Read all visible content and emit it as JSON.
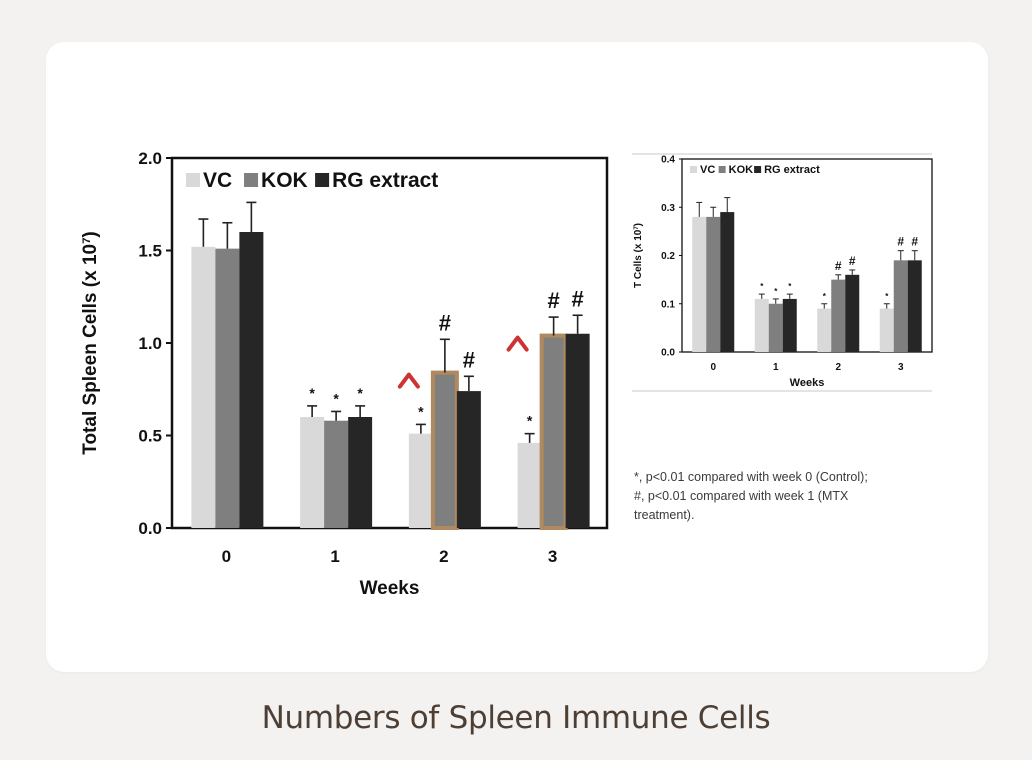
{
  "caption": "Numbers of Spleen Immune Cells",
  "footnote": {
    "line1": "*, p<0.01 compared with week 0 (Control);",
    "line2": "#, p<0.01 compared with week 1 (MTX",
    "line3": "treatment)."
  },
  "colors": {
    "vc": "#d9d9d9",
    "kok": "#7f7f7f",
    "rg": "#262626",
    "highlight_border": "#b08a5e",
    "arrow": "#cc3333",
    "caption": "#4e3f34"
  },
  "chart_data": [
    {
      "type": "bar",
      "ylabel": "Total Spleen Cells (x 10",
      "ylabel_sup": "7",
      "ylabel_end": ")",
      "xlabel": "Weeks",
      "categories": [
        "0",
        "1",
        "2",
        "3"
      ],
      "ylim": [
        0,
        2.0
      ],
      "yticks": [
        "0.0",
        "0.5",
        "1.0",
        "1.5",
        "2.0"
      ],
      "legend_position": "top-left",
      "series": [
        {
          "name": "VC",
          "values": [
            1.52,
            0.6,
            0.51,
            0.46
          ],
          "errors": [
            0.15,
            0.06,
            0.05,
            0.05
          ],
          "marks": [
            "",
            "*",
            "*",
            "*"
          ]
        },
        {
          "name": "KOK",
          "values": [
            1.51,
            0.58,
            0.84,
            1.04
          ],
          "errors": [
            0.14,
            0.05,
            0.18,
            0.1
          ],
          "marks": [
            "",
            "*",
            "#",
            "#"
          ]
        },
        {
          "name": "RG extract",
          "values": [
            1.6,
            0.6,
            0.74,
            1.05
          ],
          "errors": [
            0.16,
            0.06,
            0.08,
            0.1
          ],
          "marks": [
            "",
            "*",
            "#",
            "#"
          ]
        }
      ],
      "highlighted": [
        {
          "category": "2",
          "series": "KOK"
        },
        {
          "category": "3",
          "series": "KOK"
        }
      ],
      "arrows": [
        {
          "category": "2",
          "from": "VC",
          "to": "KOK"
        },
        {
          "category": "3",
          "from": "VC",
          "to": "KOK"
        }
      ]
    },
    {
      "type": "bar",
      "ylabel": "T Cells (x 10",
      "ylabel_sup": "7",
      "ylabel_end": ")",
      "xlabel": "Weeks",
      "categories": [
        "0",
        "1",
        "2",
        "3"
      ],
      "ylim": [
        0,
        0.4
      ],
      "yticks": [
        "0.0",
        "0.1",
        "0.2",
        "0.3",
        "0.4"
      ],
      "legend_position": "top-left",
      "series": [
        {
          "name": "VC",
          "values": [
            0.28,
            0.11,
            0.09,
            0.09
          ],
          "errors": [
            0.03,
            0.01,
            0.01,
            0.01
          ],
          "marks": [
            "",
            "*",
            "*",
            "*"
          ]
        },
        {
          "name": "KOK",
          "values": [
            0.28,
            0.1,
            0.15,
            0.19
          ],
          "errors": [
            0.02,
            0.01,
            0.01,
            0.02
          ],
          "marks": [
            "",
            "*",
            "#",
            "#"
          ]
        },
        {
          "name": "RG extract",
          "values": [
            0.29,
            0.11,
            0.16,
            0.19
          ],
          "errors": [
            0.03,
            0.01,
            0.01,
            0.02
          ],
          "marks": [
            "",
            "*",
            "#",
            "#"
          ]
        }
      ]
    }
  ]
}
